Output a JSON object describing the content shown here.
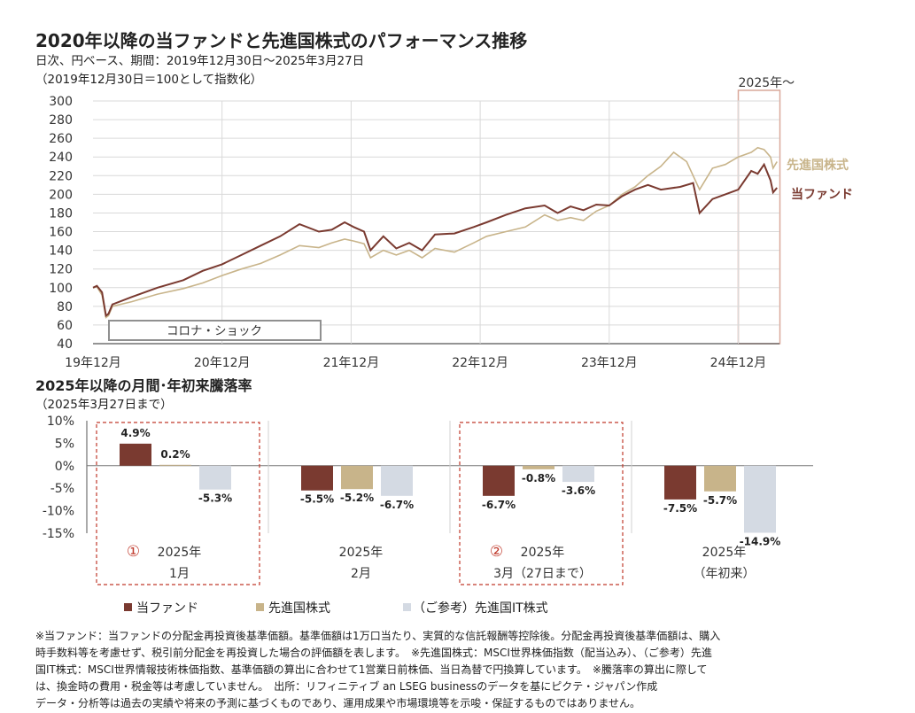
{
  "header": {
    "title": "2020年以降の当ファンドと先進国株式のパフォーマンス推移",
    "subtitle1": "日次、円ベース、期間：2019年12月30日～2025年3月27日",
    "subtitle2": "（2019年12月30日＝100として指数化）"
  },
  "colors": {
    "fund": "#7a3a30",
    "developed": "#c8b48a",
    "it": "#d4dae3",
    "highlight": "#d9a89a",
    "dashed": "#c0392b"
  },
  "chart_data": [
    {
      "type": "line",
      "ylim": [
        40,
        300
      ],
      "yticks": [
        "300",
        "280",
        "260",
        "240",
        "220",
        "200",
        "180",
        "160",
        "140",
        "120",
        "100",
        "80",
        "60",
        "40"
      ],
      "xticks": [
        "19年12月",
        "20年12月",
        "21年12月",
        "22年12月",
        "23年12月",
        "24年12月"
      ],
      "highlight_label": "2025年～",
      "annotation": "コロナ・ショック",
      "series": [
        {
          "name": "当ファンド",
          "points": [
            [
              0,
              100
            ],
            [
              0.03,
              102
            ],
            [
              0.07,
              95
            ],
            [
              0.1,
              70
            ],
            [
              0.12,
              72
            ],
            [
              0.15,
              82
            ],
            [
              0.3,
              90
            ],
            [
              0.5,
              100
            ],
            [
              0.7,
              108
            ],
            [
              0.85,
              118
            ],
            [
              1,
              125
            ],
            [
              1.15,
              135
            ],
            [
              1.3,
              145
            ],
            [
              1.45,
              155
            ],
            [
              1.6,
              168
            ],
            [
              1.75,
              160
            ],
            [
              1.85,
              162
            ],
            [
              1.95,
              170
            ],
            [
              2.02,
              165
            ],
            [
              2.1,
              160
            ],
            [
              2.15,
              140
            ],
            [
              2.25,
              155
            ],
            [
              2.35,
              142
            ],
            [
              2.45,
              148
            ],
            [
              2.55,
              140
            ],
            [
              2.65,
              157
            ],
            [
              2.8,
              158
            ],
            [
              2.95,
              165
            ],
            [
              3.05,
              170
            ],
            [
              3.2,
              178
            ],
            [
              3.35,
              185
            ],
            [
              3.5,
              188
            ],
            [
              3.6,
              180
            ],
            [
              3.7,
              187
            ],
            [
              3.8,
              183
            ],
            [
              3.9,
              189
            ],
            [
              4.0,
              188
            ],
            [
              4.1,
              198
            ],
            [
              4.2,
              205
            ],
            [
              4.3,
              210
            ],
            [
              4.4,
              205
            ],
            [
              4.55,
              208
            ],
            [
              4.65,
              212
            ],
            [
              4.7,
              180
            ],
            [
              4.8,
              195
            ],
            [
              4.9,
              200
            ],
            [
              5.0,
              205
            ],
            [
              5.1,
              225
            ],
            [
              5.15,
              222
            ],
            [
              5.2,
              232
            ],
            [
              5.25,
              215
            ],
            [
              5.27,
              202
            ],
            [
              5.3,
              207
            ]
          ]
        },
        {
          "name": "先進国株式",
          "points": [
            [
              0,
              100
            ],
            [
              0.03,
              101
            ],
            [
              0.07,
              92
            ],
            [
              0.1,
              68
            ],
            [
              0.12,
              70
            ],
            [
              0.15,
              80
            ],
            [
              0.3,
              85
            ],
            [
              0.5,
              93
            ],
            [
              0.7,
              99
            ],
            [
              0.85,
              105
            ],
            [
              1,
              113
            ],
            [
              1.15,
              120
            ],
            [
              1.3,
              126
            ],
            [
              1.45,
              135
            ],
            [
              1.6,
              145
            ],
            [
              1.75,
              143
            ],
            [
              1.85,
              148
            ],
            [
              1.95,
              152
            ],
            [
              2.02,
              150
            ],
            [
              2.1,
              147
            ],
            [
              2.15,
              132
            ],
            [
              2.25,
              140
            ],
            [
              2.35,
              135
            ],
            [
              2.45,
              140
            ],
            [
              2.55,
              132
            ],
            [
              2.65,
              142
            ],
            [
              2.8,
              138
            ],
            [
              2.95,
              148
            ],
            [
              3.05,
              155
            ],
            [
              3.2,
              160
            ],
            [
              3.35,
              165
            ],
            [
              3.5,
              178
            ],
            [
              3.6,
              172
            ],
            [
              3.7,
              175
            ],
            [
              3.8,
              172
            ],
            [
              3.9,
              182
            ],
            [
              4.0,
              188
            ],
            [
              4.1,
              200
            ],
            [
              4.2,
              208
            ],
            [
              4.3,
              220
            ],
            [
              4.4,
              230
            ],
            [
              4.5,
              245
            ],
            [
              4.6,
              235
            ],
            [
              4.7,
              205
            ],
            [
              4.8,
              228
            ],
            [
              4.9,
              232
            ],
            [
              5.0,
              240
            ],
            [
              5.1,
              245
            ],
            [
              5.15,
              250
            ],
            [
              5.2,
              248
            ],
            [
              5.25,
              240
            ],
            [
              5.27,
              228
            ],
            [
              5.3,
              235
            ]
          ]
        }
      ],
      "series_labels": {
        "developed": "先進国株式",
        "fund": "当ファンド"
      }
    },
    {
      "type": "bar",
      "title": "2025年以降の月間･年初来騰落率",
      "subtitle": "（2025年3月27日まで）",
      "ylim": [
        -15,
        10
      ],
      "yticks": [
        "10%",
        "5%",
        "0%",
        "-5%",
        "-10%",
        "-15%"
      ],
      "categories": [
        {
          "mark": "①",
          "line1": "2025年",
          "line2": "1月"
        },
        {
          "mark": "",
          "line1": "2025年",
          "line2": "2月"
        },
        {
          "mark": "②",
          "line1": "2025年",
          "line2": "3月（27日まで）"
        },
        {
          "mark": "",
          "line1": "2025年",
          "line2": "（年初来）"
        }
      ],
      "series": [
        {
          "name": "当ファンド",
          "values": [
            4.9,
            -5.5,
            -6.7,
            -7.5
          ],
          "labels": [
            "4.9%",
            "-5.5%",
            "-6.7%",
            "-7.5%"
          ]
        },
        {
          "name": "先進国株式",
          "values": [
            0.2,
            -5.2,
            -0.8,
            -5.7
          ],
          "labels": [
            "0.2%",
            "-5.2%",
            "-0.8%",
            "-5.7%"
          ]
        },
        {
          "name": "（ご参考）先進国IT株式",
          "values": [
            -5.3,
            -6.7,
            -3.6,
            -14.9
          ],
          "labels": [
            "-5.3%",
            "-6.7%",
            "-3.6%",
            "-14.9%"
          ]
        }
      ]
    }
  ],
  "legend": [
    "当ファンド",
    "先進国株式",
    "（ご参考）先進国IT株式"
  ],
  "notes": {
    "line1": "※当ファンド：当ファンドの分配金再投資後基準価額。基準価額は1万口当たり、実質的な信託報酬等控除後。分配金再投資後基準価額は、購入",
    "line2": "時手数料等を考慮せず、税引前分配金を再投資した場合の評価額を表します。　※先進国株式：MSCI世界株価指数（配当込み）、（ご参考）先進",
    "line3": "国IT株式：MSCI世界情報技術株価指数、基準価額の算出に合わせて1営業日前株価、当日為替で円換算しています。　※騰落率の算出に際して",
    "line4": "は、換金時の費用・税金等は考慮していません。　出所：リフィニティブ an LSEG businessのデータを基にピクテ・ジャパン作成",
    "line5": "データ・分析等は過去の実績や将来の予測に基づくものであり、運用成果や市場環境等を示唆・保証するものではありません。"
  }
}
